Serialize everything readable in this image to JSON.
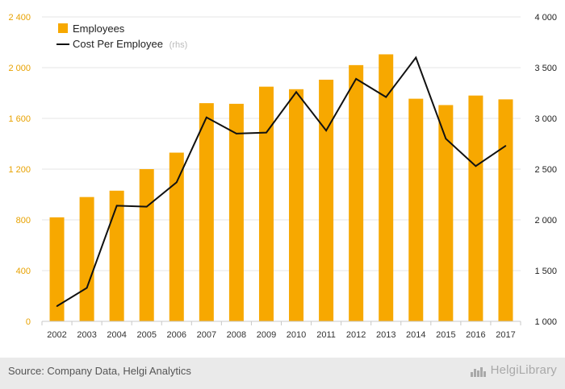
{
  "chart_data": {
    "type": "bar+line",
    "categories": [
      "2002",
      "2003",
      "2004",
      "2005",
      "2006",
      "2007",
      "2008",
      "2009",
      "2010",
      "2011",
      "2012",
      "2013",
      "2014",
      "2015",
      "2016",
      "2017"
    ],
    "series": [
      {
        "name": "Employees",
        "type": "bar",
        "axis": "left",
        "values": [
          820,
          980,
          1030,
          1200,
          1330,
          1720,
          1715,
          1850,
          1830,
          1905,
          2020,
          2105,
          1755,
          1705,
          1780,
          1750
        ]
      },
      {
        "name": "Cost Per Employee",
        "type": "line",
        "axis": "right",
        "values": [
          1150,
          1330,
          2140,
          2130,
          2370,
          3010,
          2850,
          2860,
          3260,
          2880,
          3390,
          3210,
          3600,
          2800,
          2530,
          2730
        ]
      }
    ],
    "legend": [
      {
        "label": "Employees",
        "suffix": ""
      },
      {
        "label": "Cost Per Employee",
        "suffix": "(rhs)"
      }
    ],
    "yaxis_left": {
      "min": 0,
      "max": 2400,
      "ticks": [
        "0",
        "400",
        "800",
        "1 200",
        "1 600",
        "2 000",
        "2 400"
      ]
    },
    "yaxis_right": {
      "min": 1000,
      "max": 4000,
      "ticks": [
        "1 000",
        "1 500",
        "2 000",
        "2 500",
        "3 000",
        "3 500",
        "4 000"
      ]
    },
    "grid": "horizontal",
    "legend_position": "top-left",
    "colors": {
      "bar": "#F7A800",
      "line": "#111111",
      "left_axis_text": "#E8A200",
      "right_axis_text": "#222222"
    }
  },
  "footer": {
    "source": "Source: Company Data, Helgi Analytics",
    "brand": "HelgiLibrary"
  }
}
